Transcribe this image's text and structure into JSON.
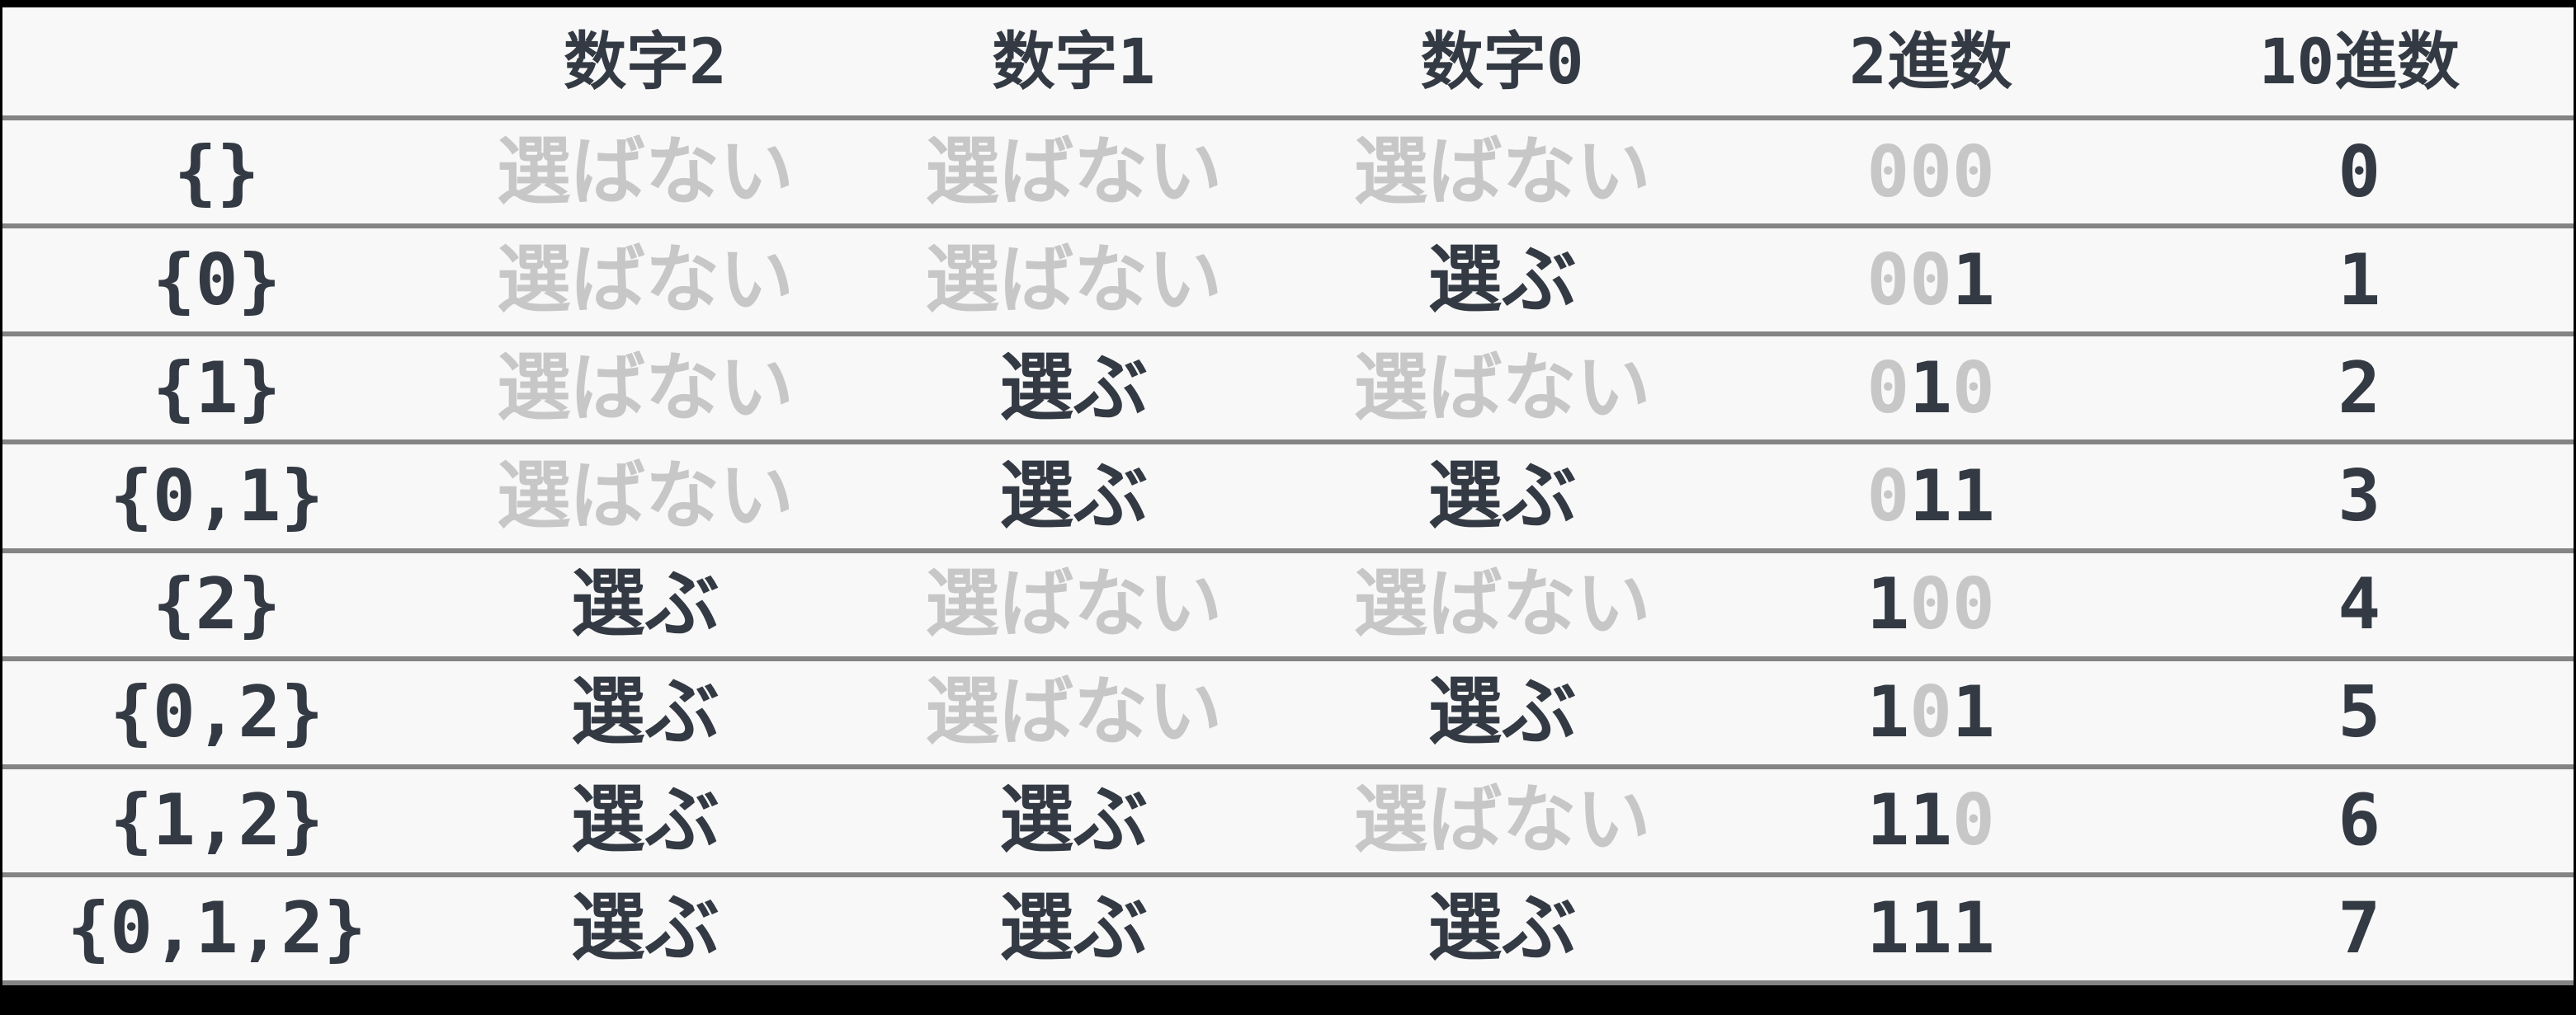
{
  "colors": {
    "page_bg": "#000000",
    "table_bg": "#f8f8f8",
    "row_line": "#848484",
    "text_dark": "#343a43",
    "text_muted": "#c7c7c7"
  },
  "table": {
    "header": [
      "",
      "数字2",
      "数字1",
      "数字0",
      "2進数",
      "10進数"
    ],
    "rows": [
      {
        "set": "{}",
        "d2": {
          "t": "選ばない",
          "s": "unselected"
        },
        "d1": {
          "t": "選ばない",
          "s": "unselected"
        },
        "d0": {
          "t": "選ばない",
          "s": "unselected"
        },
        "bits": [
          {
            "v": "0",
            "s": "off"
          },
          {
            "v": "0",
            "s": "off"
          },
          {
            "v": "0",
            "s": "off"
          }
        ],
        "dec": "0"
      },
      {
        "set": "{0}",
        "d2": {
          "t": "選ばない",
          "s": "unselected"
        },
        "d1": {
          "t": "選ばない",
          "s": "unselected"
        },
        "d0": {
          "t": "選ぶ",
          "s": "selected"
        },
        "bits": [
          {
            "v": "0",
            "s": "off"
          },
          {
            "v": "0",
            "s": "off"
          },
          {
            "v": "1",
            "s": "on"
          }
        ],
        "dec": "1"
      },
      {
        "set": "{1}",
        "d2": {
          "t": "選ばない",
          "s": "unselected"
        },
        "d1": {
          "t": "選ぶ",
          "s": "selected"
        },
        "d0": {
          "t": "選ばない",
          "s": "unselected"
        },
        "bits": [
          {
            "v": "0",
            "s": "off"
          },
          {
            "v": "1",
            "s": "on"
          },
          {
            "v": "0",
            "s": "off"
          }
        ],
        "dec": "2"
      },
      {
        "set": "{0,1}",
        "d2": {
          "t": "選ばない",
          "s": "unselected"
        },
        "d1": {
          "t": "選ぶ",
          "s": "selected"
        },
        "d0": {
          "t": "選ぶ",
          "s": "selected"
        },
        "bits": [
          {
            "v": "0",
            "s": "off"
          },
          {
            "v": "1",
            "s": "on"
          },
          {
            "v": "1",
            "s": "on"
          }
        ],
        "dec": "3"
      },
      {
        "set": "{2}",
        "d2": {
          "t": "選ぶ",
          "s": "selected"
        },
        "d1": {
          "t": "選ばない",
          "s": "unselected"
        },
        "d0": {
          "t": "選ばない",
          "s": "unselected"
        },
        "bits": [
          {
            "v": "1",
            "s": "on"
          },
          {
            "v": "0",
            "s": "off"
          },
          {
            "v": "0",
            "s": "off"
          }
        ],
        "dec": "4"
      },
      {
        "set": "{0,2}",
        "d2": {
          "t": "選ぶ",
          "s": "selected"
        },
        "d1": {
          "t": "選ばない",
          "s": "unselected"
        },
        "d0": {
          "t": "選ぶ",
          "s": "selected"
        },
        "bits": [
          {
            "v": "1",
            "s": "on"
          },
          {
            "v": "0",
            "s": "off"
          },
          {
            "v": "1",
            "s": "on"
          }
        ],
        "dec": "5"
      },
      {
        "set": "{1,2}",
        "d2": {
          "t": "選ぶ",
          "s": "selected"
        },
        "d1": {
          "t": "選ぶ",
          "s": "selected"
        },
        "d0": {
          "t": "選ばない",
          "s": "unselected"
        },
        "bits": [
          {
            "v": "1",
            "s": "on"
          },
          {
            "v": "1",
            "s": "on"
          },
          {
            "v": "0",
            "s": "off"
          }
        ],
        "dec": "6"
      },
      {
        "set": "{0,1,2}",
        "d2": {
          "t": "選ぶ",
          "s": "selected"
        },
        "d1": {
          "t": "選ぶ",
          "s": "selected"
        },
        "d0": {
          "t": "選ぶ",
          "s": "selected"
        },
        "bits": [
          {
            "v": "1",
            "s": "on"
          },
          {
            "v": "1",
            "s": "on"
          },
          {
            "v": "1",
            "s": "on"
          }
        ],
        "dec": "7"
      }
    ]
  },
  "chart_data": {
    "type": "table",
    "columns": [
      "",
      "数字2",
      "数字1",
      "数字0",
      "2進数",
      "10進数"
    ],
    "rows": [
      [
        "{}",
        "選ばない",
        "選ばない",
        "選ばない",
        "000",
        "0"
      ],
      [
        "{0}",
        "選ばない",
        "選ばない",
        "選ぶ",
        "001",
        "1"
      ],
      [
        "{1}",
        "選ばない",
        "選ぶ",
        "選ばない",
        "010",
        "2"
      ],
      [
        "{0,1}",
        "選ばない",
        "選ぶ",
        "選ぶ",
        "011",
        "3"
      ],
      [
        "{2}",
        "選ぶ",
        "選ばない",
        "選ばない",
        "100",
        "4"
      ],
      [
        "{0,2}",
        "選ぶ",
        "選ばない",
        "選ぶ",
        "101",
        "5"
      ],
      [
        "{1,2}",
        "選ぶ",
        "選ぶ",
        "選ばない",
        "110",
        "6"
      ],
      [
        "{0,1,2}",
        "選ぶ",
        "選ぶ",
        "選ぶ",
        "111",
        "7"
      ]
    ]
  }
}
